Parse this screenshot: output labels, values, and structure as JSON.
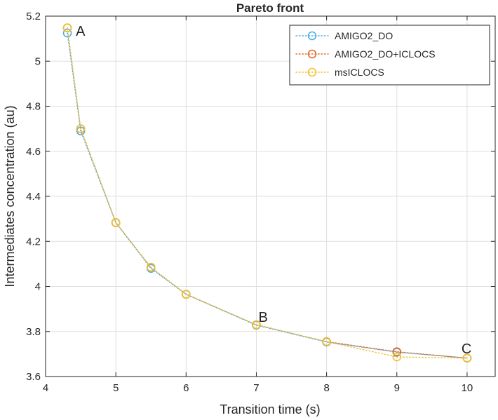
{
  "chart_data": {
    "type": "line",
    "title": "Pareto front",
    "xlabel": "Transition time (s)",
    "ylabel": "Intermediates concentration (au)",
    "xlim": [
      4,
      10.4
    ],
    "ylim": [
      3.6,
      5.2
    ],
    "xticks": [
      4,
      5,
      6,
      7,
      8,
      9,
      10
    ],
    "yticks": [
      3.6,
      3.8,
      4,
      4.2,
      4.4,
      4.6,
      4.8,
      5,
      5.2
    ],
    "xtick_labels": [
      "4",
      "5",
      "6",
      "7",
      "8",
      "9",
      "10"
    ],
    "ytick_labels": [
      "3.6",
      "3.8",
      "4",
      "4.2",
      "4.4",
      "4.6",
      "4.8",
      "5",
      "5.2"
    ],
    "grid": true,
    "legend_position": "top-right",
    "series": [
      {
        "name": "AMIGO2_DO",
        "color": "#4DAEE8",
        "x": [
          4.31,
          4.5,
          5.0,
          5.5,
          6.0,
          7.0,
          8.0,
          9.0,
          10.0
        ],
        "y": [
          5.125,
          4.69,
          4.283,
          4.08,
          3.965,
          3.828,
          3.753,
          3.708,
          3.682
        ]
      },
      {
        "name": "AMIGO2_DO+ICLOCS",
        "color": "#E2682A",
        "x": [
          4.31,
          4.5,
          5.0,
          5.5,
          6.0,
          7.0,
          8.0,
          9.0,
          10.0
        ],
        "y": [
          5.148,
          4.7,
          4.283,
          4.085,
          3.965,
          3.83,
          3.755,
          3.71,
          3.682
        ]
      },
      {
        "name": "msICLOCS",
        "color": "#F0C02C",
        "x": [
          4.31,
          4.5,
          5.0,
          5.5,
          6.0,
          7.0,
          8.0,
          9.0,
          10.0
        ],
        "y": [
          5.148,
          4.7,
          4.283,
          4.085,
          3.965,
          3.83,
          3.755,
          3.687,
          3.682
        ]
      }
    ],
    "annotations": [
      {
        "text": "A",
        "x": 4.43,
        "y": 5.135
      },
      {
        "text": "B",
        "x": 7.03,
        "y": 3.865
      },
      {
        "text": "C",
        "x": 9.92,
        "y": 3.725
      }
    ]
  }
}
